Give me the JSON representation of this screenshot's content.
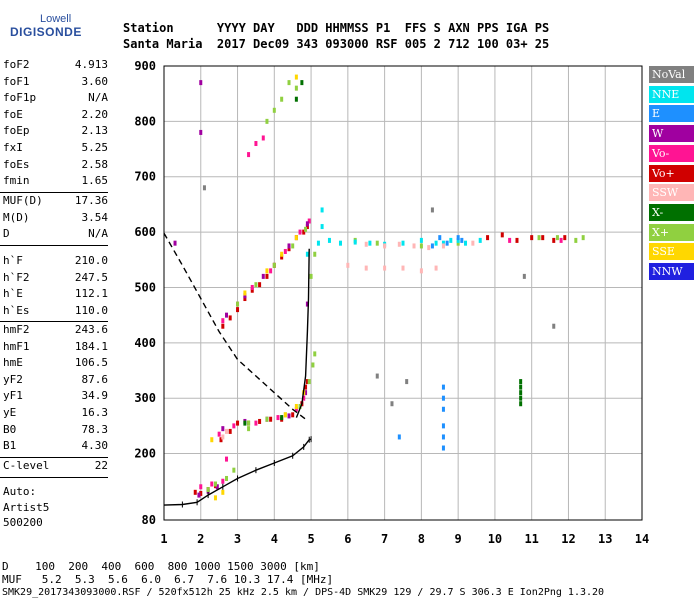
{
  "logo": {
    "line1": "Lowell",
    "line2": "DIGISONDE"
  },
  "header": {
    "labels": "Station      YYYY DAY   DDD HHMMSS P1  FFS S AXN PPS IGA PS",
    "values": "Santa Maria  2017 Dec09 343 093000 RSF 005 2 712 100 03+ 25"
  },
  "params": {
    "group1": [
      {
        "name": "foF2",
        "value": "4.913"
      },
      {
        "name": "foF1",
        "value": "3.60"
      },
      {
        "name": "foF1p",
        "value": "N/A"
      },
      {
        "name": "foE",
        "value": "2.20"
      },
      {
        "name": "foEp",
        "value": "2.13"
      },
      {
        "name": "fxI",
        "value": "5.25"
      },
      {
        "name": "foEs",
        "value": "2.58"
      },
      {
        "name": "fmin",
        "value": "1.65"
      }
    ],
    "group2": [
      {
        "name": "MUF(D)",
        "value": "17.36"
      },
      {
        "name": "M(D)",
        "value": "3.54"
      },
      {
        "name": "D",
        "value": "N/A"
      }
    ],
    "group3": [
      {
        "name": "h`F",
        "value": "210.0"
      },
      {
        "name": "h`F2",
        "value": "247.5"
      },
      {
        "name": "h`E",
        "value": "112.1"
      },
      {
        "name": "h`Es",
        "value": "110.0"
      }
    ],
    "group4": [
      {
        "name": "hmF2",
        "value": "243.6"
      },
      {
        "name": "hmF1",
        "value": "184.1"
      },
      {
        "name": "hmE",
        "value": "106.5"
      },
      {
        "name": "yF2",
        "value": "87.6"
      },
      {
        "name": "yF1",
        "value": "34.9"
      },
      {
        "name": "yE",
        "value": "16.3"
      },
      {
        "name": "B0",
        "value": "78.3"
      },
      {
        "name": "B1",
        "value": "4.30"
      }
    ],
    "group5": [
      {
        "name": "C-level",
        "value": "22"
      }
    ],
    "auto": [
      "Auto:",
      "Artist5",
      "500200"
    ]
  },
  "legend": [
    {
      "label": "NoVal",
      "color": "#808080"
    },
    {
      "label": "NNE",
      "color": "#00e5ee"
    },
    {
      "label": "E",
      "color": "#1e90ff"
    },
    {
      "label": "W",
      "color": "#a000a0"
    },
    {
      "label": "Vo-",
      "color": "#ff1493"
    },
    {
      "label": "Vo+",
      "color": "#d00000"
    },
    {
      "label": "SSW",
      "color": "#ffb6b6"
    },
    {
      "label": "X-",
      "color": "#007000"
    },
    {
      "label": "X+",
      "color": "#90d040"
    },
    {
      "label": "SSE",
      "color": "#ffd700"
    },
    {
      "label": "NNW",
      "color": "#2020e0"
    }
  ],
  "chart_data": {
    "type": "scatter",
    "xlabel": "",
    "ylabel": "",
    "xlim": [
      1,
      14
    ],
    "ylim": [
      80,
      900
    ],
    "x_ticks": [
      1,
      2,
      3,
      4,
      5,
      6,
      7,
      8,
      9,
      10,
      11,
      12,
      13,
      14
    ],
    "y_ticks": [
      80,
      200,
      300,
      400,
      500,
      600,
      700,
      800,
      900
    ],
    "grid": true,
    "series": [
      {
        "color": "#d00000",
        "points": [
          [
            2.6,
            430
          ],
          [
            2.8,
            445
          ],
          [
            3.0,
            460
          ],
          [
            3.2,
            480
          ],
          [
            3.4,
            495
          ],
          [
            3.6,
            505
          ],
          [
            3.8,
            520
          ],
          [
            4.0,
            540
          ],
          [
            4.2,
            555
          ],
          [
            4.4,
            570
          ],
          [
            4.6,
            590
          ],
          [
            4.8,
            600
          ],
          [
            4.9,
            610
          ],
          [
            2.55,
            225
          ],
          [
            2.8,
            240
          ],
          [
            3.0,
            255
          ],
          [
            3.3,
            255
          ],
          [
            3.6,
            258
          ],
          [
            3.9,
            262
          ],
          [
            4.2,
            262
          ],
          [
            4.5,
            270
          ],
          [
            4.75,
            290
          ],
          [
            4.85,
            320
          ],
          [
            4.9,
            330
          ],
          [
            9.8,
            590
          ],
          [
            10.2,
            595
          ],
          [
            10.6,
            585
          ],
          [
            11.0,
            590
          ],
          [
            11.3,
            590
          ],
          [
            11.6,
            585
          ],
          [
            11.9,
            590
          ],
          [
            1.85,
            130
          ],
          [
            2.0,
            128
          ],
          [
            2.2,
            135
          ],
          [
            2.4,
            142
          ]
        ]
      },
      {
        "color": "#ff1493",
        "points": [
          [
            2.6,
            440
          ],
          [
            3.0,
            470
          ],
          [
            3.4,
            500
          ],
          [
            3.9,
            530
          ],
          [
            4.3,
            565
          ],
          [
            4.7,
            600
          ],
          [
            4.95,
            620
          ],
          [
            3.3,
            740
          ],
          [
            3.5,
            760
          ],
          [
            3.7,
            770
          ],
          [
            2.5,
            235
          ],
          [
            2.9,
            250
          ],
          [
            3.5,
            255
          ],
          [
            4.1,
            265
          ],
          [
            4.6,
            280
          ],
          [
            4.8,
            300
          ],
          [
            2.0,
            140
          ],
          [
            2.3,
            145
          ],
          [
            2.6,
            150
          ],
          [
            10.4,
            585
          ],
          [
            11.8,
            585
          ],
          [
            2.7,
            190
          ]
        ]
      },
      {
        "color": "#a000a0",
        "points": [
          [
            2.7,
            450
          ],
          [
            3.2,
            485
          ],
          [
            3.7,
            520
          ],
          [
            4.4,
            575
          ],
          [
            4.9,
            615
          ],
          [
            2.6,
            245
          ],
          [
            3.2,
            258
          ],
          [
            3.8,
            262
          ],
          [
            4.4,
            268
          ],
          [
            4.85,
            310
          ],
          [
            1.95,
            125
          ],
          [
            2.2,
            132
          ],
          [
            2.45,
            140
          ],
          [
            4.9,
            470
          ],
          [
            2.0,
            780
          ],
          [
            1.3,
            580
          ],
          [
            2.0,
            870
          ]
        ]
      },
      {
        "color": "#90d040",
        "points": [
          [
            3.0,
            470
          ],
          [
            3.5,
            505
          ],
          [
            4.0,
            540
          ],
          [
            4.5,
            575
          ],
          [
            4.85,
            605
          ],
          [
            3.8,
            800
          ],
          [
            4.0,
            820
          ],
          [
            4.2,
            840
          ],
          [
            4.4,
            870
          ],
          [
            4.6,
            860
          ],
          [
            2.2,
            135
          ],
          [
            2.4,
            145
          ],
          [
            2.7,
            155
          ],
          [
            2.9,
            170
          ],
          [
            3.3,
            255
          ],
          [
            3.8,
            262
          ],
          [
            4.3,
            270
          ],
          [
            4.7,
            285
          ],
          [
            4.95,
            330
          ],
          [
            5.05,
            360
          ],
          [
            5.1,
            380
          ],
          [
            3.3,
            245
          ],
          [
            6.2,
            585
          ],
          [
            6.8,
            580
          ],
          [
            8.0,
            575
          ],
          [
            9.0,
            580
          ],
          [
            11.2,
            590
          ],
          [
            11.7,
            590
          ],
          [
            12.2,
            585
          ],
          [
            12.4,
            590
          ],
          [
            5.0,
            520
          ],
          [
            5.1,
            560
          ]
        ]
      },
      {
        "color": "#ffd700",
        "points": [
          [
            3.2,
            490
          ],
          [
            3.8,
            530
          ],
          [
            4.2,
            560
          ],
          [
            4.6,
            590
          ],
          [
            4.3,
            270
          ],
          [
            4.6,
            285
          ],
          [
            4.8,
            310
          ],
          [
            2.4,
            120
          ],
          [
            2.6,
            130
          ],
          [
            4.6,
            880
          ],
          [
            2.3,
            225
          ]
        ]
      },
      {
        "color": "#00e5ee",
        "points": [
          [
            5.2,
            580
          ],
          [
            5.5,
            585
          ],
          [
            5.8,
            580
          ],
          [
            6.2,
            582
          ],
          [
            6.6,
            580
          ],
          [
            7.0,
            578
          ],
          [
            7.5,
            580
          ],
          [
            8.0,
            585
          ],
          [
            8.4,
            580
          ],
          [
            8.8,
            585
          ],
          [
            9.2,
            580
          ],
          [
            9.6,
            585
          ],
          [
            5.3,
            640
          ],
          [
            5.3,
            610
          ],
          [
            4.9,
            560
          ],
          [
            9.0,
            585
          ],
          [
            8.6,
            580
          ]
        ]
      },
      {
        "color": "#1e90ff",
        "points": [
          [
            8.3,
            575
          ],
          [
            8.7,
            580
          ],
          [
            9.1,
            585
          ],
          [
            8.6,
            320
          ],
          [
            8.6,
            300
          ],
          [
            8.6,
            280
          ],
          [
            8.6,
            250
          ],
          [
            8.6,
            230
          ],
          [
            8.6,
            210
          ],
          [
            7.4,
            230
          ],
          [
            8.5,
            590
          ],
          [
            9.0,
            590
          ]
        ]
      },
      {
        "color": "#ffb6b6",
        "points": [
          [
            6.5,
            578
          ],
          [
            7.0,
            575
          ],
          [
            7.4,
            578
          ],
          [
            7.8,
            575
          ],
          [
            8.2,
            572
          ],
          [
            8.6,
            575
          ],
          [
            9.4,
            580
          ],
          [
            6.0,
            540
          ],
          [
            6.5,
            535
          ],
          [
            7.0,
            535
          ],
          [
            7.5,
            535
          ],
          [
            8.0,
            530
          ],
          [
            8.4,
            535
          ],
          [
            2.6,
            230
          ],
          [
            2.7,
            240
          ]
        ]
      },
      {
        "color": "#007000",
        "points": [
          [
            10.7,
            290
          ],
          [
            10.7,
            300
          ],
          [
            10.7,
            310
          ],
          [
            10.7,
            320
          ],
          [
            10.7,
            330
          ],
          [
            4.6,
            840
          ],
          [
            4.75,
            870
          ],
          [
            3.2,
            255
          ],
          [
            4.2,
            265
          ]
        ]
      },
      {
        "color": "#808080",
        "points": [
          [
            6.8,
            340
          ],
          [
            7.2,
            290
          ],
          [
            7.6,
            330
          ],
          [
            10.8,
            520
          ],
          [
            11.6,
            430
          ],
          [
            8.3,
            640
          ],
          [
            2.1,
            680
          ]
        ]
      }
    ],
    "lines": [
      {
        "style": "dashed",
        "points": [
          [
            1.0,
            598
          ],
          [
            1.5,
            540
          ],
          [
            2.0,
            480
          ],
          [
            2.5,
            420
          ],
          [
            3.0,
            370
          ],
          [
            3.5,
            340
          ],
          [
            4.0,
            310
          ],
          [
            4.5,
            280
          ],
          [
            4.85,
            262
          ]
        ]
      },
      {
        "style": "solid",
        "points": [
          [
            1.0,
            107
          ],
          [
            1.5,
            108
          ],
          [
            1.9,
            112
          ],
          [
            2.2,
            125
          ],
          [
            2.6,
            140
          ],
          [
            3.0,
            155
          ],
          [
            3.5,
            170
          ],
          [
            4.0,
            183
          ],
          [
            4.5,
            196
          ],
          [
            4.8,
            212
          ],
          [
            4.95,
            225
          ],
          [
            5.0,
            226
          ]
        ]
      },
      {
        "style": "solid",
        "points": [
          [
            4.6,
            265
          ],
          [
            4.75,
            290
          ],
          [
            4.85,
            340
          ],
          [
            4.9,
            420
          ],
          [
            4.93,
            480
          ],
          [
            4.95,
            570
          ]
        ]
      }
    ]
  },
  "bottom": {
    "d_row": "D    100  200  400  600  800 1000 1500 3000 [km]",
    "muf_row": "MUF   5.2  5.3  5.6  6.0  6.7  7.6 10.3 17.4 [MHz]",
    "footer": "SMK29_2017343093000.RSF / 520fx512h 25 kHz 2.5 km / DPS-4D SMK29 129 / 29.7 S 306.3 E Ion2Png 1.3.20"
  }
}
